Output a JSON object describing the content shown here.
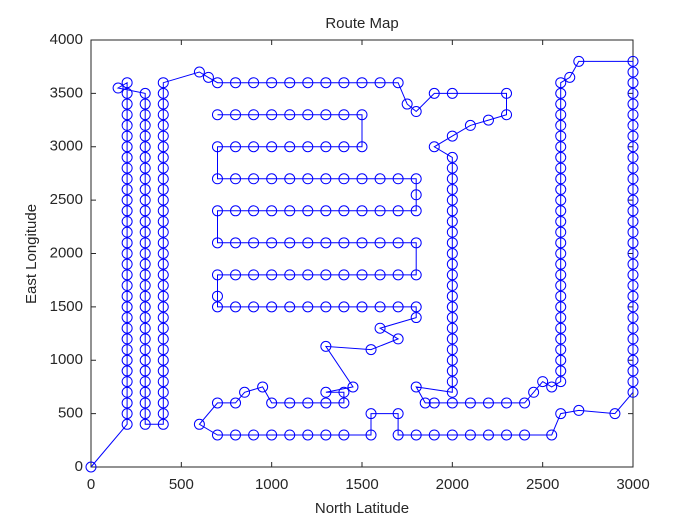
{
  "chart_data": {
    "type": "line",
    "title": "Route Map",
    "xlabel": "North Latitude",
    "ylabel": "East Longitude",
    "color": "#0000ff",
    "marker": "circle",
    "xlim": [
      0,
      3000
    ],
    "ylim": [
      0,
      4000
    ],
    "xticks": [
      0,
      500,
      1000,
      1500,
      2000,
      2500,
      3000
    ],
    "yticks": [
      0,
      500,
      1000,
      1500,
      2000,
      2500,
      3000,
      3500,
      4000
    ],
    "x": [
      0,
      200,
      200,
      200,
      200,
      200,
      200,
      200,
      200,
      200,
      200,
      200,
      200,
      200,
      200,
      200,
      200,
      200,
      200,
      200,
      200,
      200,
      200,
      200,
      200,
      200,
      200,
      200,
      200,
      200,
      200,
      200,
      200,
      200,
      150,
      300,
      300,
      300,
      300,
      300,
      300,
      300,
      300,
      300,
      300,
      300,
      300,
      300,
      300,
      300,
      300,
      300,
      300,
      300,
      300,
      300,
      300,
      300,
      300,
      300,
      300,
      300,
      300,
      300,
      300,
      300,
      300,
      400,
      400,
      400,
      400,
      400,
      400,
      400,
      400,
      400,
      400,
      400,
      400,
      400,
      400,
      400,
      400,
      400,
      400,
      400,
      400,
      400,
      400,
      400,
      400,
      400,
      400,
      400,
      400,
      400,
      400,
      400,
      400,
      400,
      600,
      650,
      700,
      800,
      900,
      1000,
      1100,
      1200,
      1300,
      1400,
      1500,
      1600,
      1700,
      1750,
      1800,
      1900,
      2000,
      2300,
      2300,
      2200,
      2100,
      2000,
      1900,
      2000,
      2000,
      2000,
      2000,
      2000,
      2000,
      2000,
      2000,
      2000,
      2000,
      2000,
      2000,
      2000,
      2000,
      2000,
      2000,
      2000,
      2000,
      2000,
      2000,
      2000,
      2000,
      2000,
      1800,
      1850,
      1900,
      2000,
      2100,
      2200,
      2300,
      2400,
      2450,
      2500,
      2550,
      2600,
      2600,
      2600,
      2600,
      2600,
      2600,
      2600,
      2600,
      2600,
      2600,
      2600,
      2600,
      2600,
      2600,
      2600,
      2600,
      2600,
      2600,
      2600,
      2600,
      2600,
      2600,
      2600,
      2600,
      2600,
      2600,
      2600,
      2600,
      2600,
      2650,
      2700,
      3000,
      3000,
      3000,
      3000,
      3000,
      3000,
      3000,
      3000,
      3000,
      3000,
      3000,
      3000,
      3000,
      3000,
      3000,
      3000,
      3000,
      3000,
      3000,
      3000,
      3000,
      3000,
      3000,
      3000,
      3000,
      3000,
      3000,
      3000,
      3000,
      3000,
      3000,
      3000,
      2900,
      2700,
      2600,
      2550,
      2400,
      2300,
      2200,
      2100,
      2000,
      1900,
      1800,
      1700,
      1700,
      1550,
      1550,
      1400,
      1300,
      1200,
      1100,
      1000,
      900,
      800,
      700,
      600,
      700,
      800,
      850,
      950,
      1000,
      1100,
      1200,
      1300,
      1400,
      1400,
      1300,
      1450,
      1300,
      1550,
      1700,
      1600,
      1800,
      1800,
      1700,
      1600,
      1500,
      1400,
      1300,
      1200,
      1100,
      1000,
      900,
      800,
      700,
      700,
      700,
      800,
      900,
      1000,
      1100,
      1200,
      1300,
      1400,
      1500,
      1600,
      1700,
      1800,
      1800,
      1700,
      1600,
      1500,
      1400,
      1300,
      1200,
      1100,
      1000,
      900,
      800,
      700,
      700,
      800,
      900,
      1000,
      1100,
      1200,
      1300,
      1400,
      1500,
      1600,
      1700,
      1800,
      1800,
      1800,
      1700,
      1600,
      1500,
      1400,
      1300,
      1200,
      1100,
      1000,
      900,
      800,
      700,
      700,
      800,
      900,
      1000,
      1100,
      1200,
      1300,
      1400,
      1500,
      1500,
      1400,
      1300,
      1200,
      1100,
      1000,
      900,
      800,
      700
    ],
    "values": [
      0,
      400,
      500,
      600,
      700,
      800,
      900,
      1000,
      1100,
      1200,
      1300,
      1400,
      1500,
      1600,
      1700,
      1800,
      1900,
      2000,
      2100,
      2200,
      2300,
      2400,
      2500,
      2600,
      2700,
      2800,
      2900,
      3000,
      3100,
      3200,
      3300,
      3400,
      3500,
      3600,
      3550,
      3500,
      3400,
      3300,
      3200,
      3100,
      3000,
      2900,
      2800,
      2700,
      2600,
      2500,
      2400,
      2300,
      2200,
      2100,
      2000,
      1900,
      1800,
      1700,
      1600,
      1500,
      1400,
      1300,
      1200,
      1100,
      1000,
      900,
      800,
      700,
      600,
      500,
      400,
      400,
      500,
      600,
      700,
      800,
      900,
      1000,
      1100,
      1200,
      1300,
      1400,
      1500,
      1600,
      1700,
      1800,
      1900,
      2000,
      2100,
      2200,
      2300,
      2400,
      2500,
      2600,
      2700,
      2800,
      2900,
      3000,
      3100,
      3200,
      3300,
      3400,
      3500,
      3600,
      3700,
      3650,
      3600,
      3600,
      3600,
      3600,
      3600,
      3600,
      3600,
      3600,
      3600,
      3600,
      3600,
      3400,
      3330,
      3500,
      3500,
      3500,
      3300,
      3250,
      3200,
      3100,
      3000,
      2900,
      2800,
      2700,
      2600,
      2500,
      2400,
      2300,
      2200,
      2100,
      2000,
      1900,
      1800,
      1700,
      1600,
      1500,
      1400,
      1300,
      1200,
      1100,
      1000,
      900,
      800,
      700,
      750,
      600,
      600,
      600,
      600,
      600,
      600,
      600,
      700,
      800,
      750,
      800,
      900,
      1000,
      1100,
      1200,
      1300,
      1400,
      1500,
      1600,
      1700,
      1800,
      1900,
      2000,
      2100,
      2200,
      2300,
      2400,
      2500,
      2600,
      2700,
      2800,
      2900,
      3000,
      3100,
      3200,
      3300,
      3400,
      3500,
      3600,
      3650,
      3800,
      3800,
      3700,
      3600,
      3500,
      3400,
      3300,
      3200,
      3100,
      3000,
      2900,
      2800,
      2700,
      2600,
      2500,
      2400,
      2300,
      2200,
      2100,
      2000,
      1900,
      1800,
      1700,
      1600,
      1500,
      1400,
      1300,
      1200,
      1100,
      1000,
      900,
      800,
      700,
      500,
      530,
      500,
      300,
      300,
      300,
      300,
      300,
      300,
      300,
      300,
      300,
      500,
      500,
      300,
      300,
      300,
      300,
      300,
      300,
      300,
      300,
      300,
      400,
      600,
      600,
      700,
      750,
      600,
      600,
      600,
      600,
      600,
      700,
      700,
      750,
      1130,
      1100,
      1200,
      1300,
      1400,
      1500,
      1500,
      1500,
      1500,
      1500,
      1500,
      1500,
      1500,
      1500,
      1500,
      1500,
      1500,
      1600,
      1800,
      1800,
      1800,
      1800,
      1800,
      1800,
      1800,
      1800,
      1800,
      1800,
      1800,
      1800,
      2100,
      2100,
      2100,
      2100,
      2100,
      2100,
      2100,
      2100,
      2100,
      2100,
      2100,
      2100,
      2400,
      2400,
      2400,
      2400,
      2400,
      2400,
      2400,
      2400,
      2400,
      2400,
      2400,
      2400,
      2550,
      2700,
      2700,
      2700,
      2700,
      2700,
      2700,
      2700,
      2700,
      2700,
      2700,
      2700,
      2700,
      3000,
      3000,
      3000,
      3000,
      3000,
      3000,
      3000,
      3000,
      3000,
      3300,
      3300,
      3300,
      3300,
      3300,
      3300,
      3300,
      3300,
      3300
    ]
  }
}
